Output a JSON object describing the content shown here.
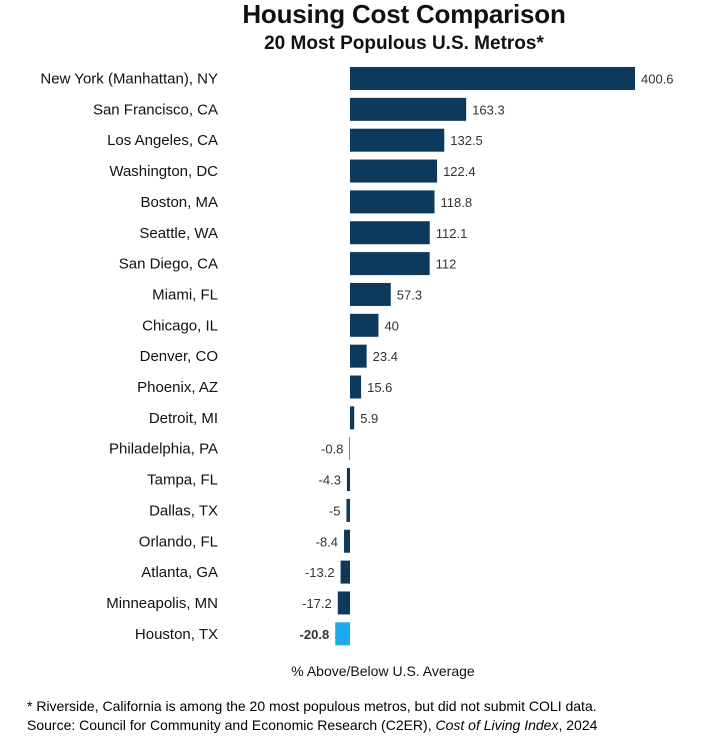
{
  "chart_data": {
    "type": "bar",
    "orientation": "horizontal",
    "title": "Housing Cost Comparison",
    "subtitle": "20 Most Populous U.S. Metros*",
    "xlabel": "% Above/Below U.S. Average",
    "ylabel": "",
    "xlim": [
      -20.8,
      400.6
    ],
    "categories": [
      "New York (Manhattan), NY",
      "San Francisco, CA",
      "Los Angeles, CA",
      "Washington, DC",
      "Boston, MA",
      "Seattle, WA",
      "San Diego, CA",
      "Miami, FL",
      "Chicago, IL",
      "Denver, CO",
      "Phoenix, AZ",
      "Detroit, MI",
      "Philadelphia, PA",
      "Tampa, FL",
      "Dallas, TX",
      "Orlando, FL",
      "Atlanta, GA",
      "Minneapolis, MN",
      "Houston, TX"
    ],
    "values": [
      400.6,
      163.3,
      132.5,
      122.4,
      118.8,
      112.1,
      112,
      57.3,
      40,
      23.4,
      15.6,
      5.9,
      -0.8,
      -4.3,
      -5,
      -8.4,
      -13.2,
      -17.2,
      -20.8
    ],
    "value_labels": [
      "400.6",
      "163.3",
      "132.5",
      "122.4",
      "118.8",
      "112.1",
      "112",
      "57.3",
      "40",
      "23.4",
      "15.6",
      "5.9",
      "-0.8",
      "-4.3",
      "-5",
      "-8.4",
      "-13.2",
      "-17.2",
      "-20.8"
    ],
    "highlight": "Houston, TX",
    "colors": {
      "bar": "#0d3a5c",
      "highlight": "#1eaaea"
    },
    "grid": false,
    "legend": "none"
  },
  "footnote": {
    "line1": "* Riverside, California is among the 20 most populous metros, but did not submit COLI data.",
    "source_prefix": "Source: Council for Community and Economic Research (C2ER), ",
    "source_title": "Cost of Living Index",
    "source_suffix": ", 2024"
  }
}
